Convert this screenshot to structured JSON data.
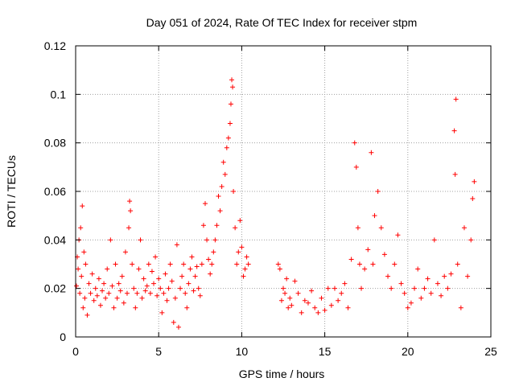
{
  "chart_data": {
    "type": "scatter",
    "title": "Day 051 of 2024, Rate Of TEC Index for receiver stpm",
    "xlabel": "GPS time / hours",
    "ylabel": "ROTI / TECUs",
    "xlim": [
      0,
      25
    ],
    "ylim": [
      0,
      0.12
    ],
    "xticks": [
      0,
      5,
      10,
      15,
      20,
      25
    ],
    "xtick_labels": [
      "0",
      "5",
      "10",
      "15",
      "20",
      "25"
    ],
    "yticks": [
      0,
      0.02,
      0.04,
      0.06,
      0.08,
      0.1,
      0.12
    ],
    "ytick_labels": [
      "0",
      "0.02",
      "0.04",
      "0.06",
      "0.08",
      "0.1",
      "0.12"
    ],
    "grid": true,
    "marker": "+",
    "color": "#ff0000",
    "series": [
      {
        "name": "ROTI",
        "points": [
          [
            0.05,
            0.021
          ],
          [
            0.1,
            0.033
          ],
          [
            0.15,
            0.028
          ],
          [
            0.2,
            0.04
          ],
          [
            0.25,
            0.018
          ],
          [
            0.3,
            0.045
          ],
          [
            0.35,
            0.025
          ],
          [
            0.4,
            0.054
          ],
          [
            0.45,
            0.012
          ],
          [
            0.5,
            0.035
          ],
          [
            0.55,
            0.016
          ],
          [
            0.6,
            0.03
          ],
          [
            0.7,
            0.009
          ],
          [
            0.8,
            0.022
          ],
          [
            0.9,
            0.018
          ],
          [
            1.0,
            0.026
          ],
          [
            1.1,
            0.015
          ],
          [
            1.2,
            0.02
          ],
          [
            1.3,
            0.017
          ],
          [
            1.4,
            0.024
          ],
          [
            1.5,
            0.013
          ],
          [
            1.6,
            0.019
          ],
          [
            1.7,
            0.022
          ],
          [
            1.8,
            0.016
          ],
          [
            1.9,
            0.028
          ],
          [
            2.0,
            0.018
          ],
          [
            2.1,
            0.04
          ],
          [
            2.2,
            0.021
          ],
          [
            2.3,
            0.012
          ],
          [
            2.4,
            0.03
          ],
          [
            2.5,
            0.016
          ],
          [
            2.6,
            0.022
          ],
          [
            2.7,
            0.019
          ],
          [
            2.8,
            0.025
          ],
          [
            2.9,
            0.014
          ],
          [
            3.0,
            0.035
          ],
          [
            3.1,
            0.018
          ],
          [
            3.2,
            0.045
          ],
          [
            3.25,
            0.056
          ],
          [
            3.3,
            0.052
          ],
          [
            3.4,
            0.03
          ],
          [
            3.5,
            0.02
          ],
          [
            3.6,
            0.012
          ],
          [
            3.7,
            0.018
          ],
          [
            3.8,
            0.028
          ],
          [
            3.9,
            0.04
          ],
          [
            4.0,
            0.016
          ],
          [
            4.1,
            0.024
          ],
          [
            4.2,
            0.019
          ],
          [
            4.3,
            0.021
          ],
          [
            4.4,
            0.03
          ],
          [
            4.5,
            0.018
          ],
          [
            4.6,
            0.027
          ],
          [
            4.7,
            0.022
          ],
          [
            4.8,
            0.033
          ],
          [
            4.9,
            0.017
          ],
          [
            5.0,
            0.024
          ],
          [
            5.1,
            0.02
          ],
          [
            5.2,
            0.01
          ],
          [
            5.3,
            0.018
          ],
          [
            5.4,
            0.026
          ],
          [
            5.5,
            0.015
          ],
          [
            5.6,
            0.02
          ],
          [
            5.7,
            0.03
          ],
          [
            5.8,
            0.023
          ],
          [
            5.9,
            0.006
          ],
          [
            6.0,
            0.016
          ],
          [
            6.1,
            0.038
          ],
          [
            6.2,
            0.004
          ],
          [
            6.3,
            0.02
          ],
          [
            6.4,
            0.025
          ],
          [
            6.5,
            0.03
          ],
          [
            6.6,
            0.018
          ],
          [
            6.7,
            0.012
          ],
          [
            6.8,
            0.022
          ],
          [
            6.9,
            0.028
          ],
          [
            7.0,
            0.033
          ],
          [
            7.1,
            0.019
          ],
          [
            7.2,
            0.025
          ],
          [
            7.3,
            0.029
          ],
          [
            7.4,
            0.02
          ],
          [
            7.5,
            0.017
          ],
          [
            7.6,
            0.03
          ],
          [
            7.7,
            0.046
          ],
          [
            7.8,
            0.055
          ],
          [
            7.9,
            0.04
          ],
          [
            8.0,
            0.032
          ],
          [
            8.1,
            0.026
          ],
          [
            8.2,
            0.03
          ],
          [
            8.3,
            0.035
          ],
          [
            8.4,
            0.04
          ],
          [
            8.5,
            0.046
          ],
          [
            8.6,
            0.058
          ],
          [
            8.7,
            0.052
          ],
          [
            8.8,
            0.062
          ],
          [
            8.9,
            0.072
          ],
          [
            9.0,
            0.067
          ],
          [
            9.1,
            0.078
          ],
          [
            9.2,
            0.082
          ],
          [
            9.3,
            0.088
          ],
          [
            9.35,
            0.096
          ],
          [
            9.4,
            0.106
          ],
          [
            9.45,
            0.103
          ],
          [
            9.5,
            0.06
          ],
          [
            9.6,
            0.045
          ],
          [
            9.7,
            0.03
          ],
          [
            9.8,
            0.035
          ],
          [
            9.9,
            0.048
          ],
          [
            10.0,
            0.037
          ],
          [
            10.1,
            0.025
          ],
          [
            10.2,
            0.028
          ],
          [
            10.3,
            0.033
          ],
          [
            10.4,
            0.03
          ],
          [
            12.2,
            0.03
          ],
          [
            12.3,
            0.028
          ],
          [
            12.4,
            0.015
          ],
          [
            12.5,
            0.02
          ],
          [
            12.6,
            0.018
          ],
          [
            12.7,
            0.024
          ],
          [
            12.8,
            0.012
          ],
          [
            12.9,
            0.016
          ],
          [
            13.0,
            0.013
          ],
          [
            13.2,
            0.023
          ],
          [
            13.4,
            0.018
          ],
          [
            13.6,
            0.01
          ],
          [
            13.8,
            0.015
          ],
          [
            14.0,
            0.014
          ],
          [
            14.2,
            0.019
          ],
          [
            14.4,
            0.012
          ],
          [
            14.6,
            0.01
          ],
          [
            14.8,
            0.016
          ],
          [
            15.0,
            0.011
          ],
          [
            15.2,
            0.02
          ],
          [
            15.4,
            0.013
          ],
          [
            15.6,
            0.02
          ],
          [
            15.8,
            0.015
          ],
          [
            16.0,
            0.018
          ],
          [
            16.2,
            0.022
          ],
          [
            16.4,
            0.012
          ],
          [
            16.6,
            0.032
          ],
          [
            16.8,
            0.08
          ],
          [
            16.9,
            0.07
          ],
          [
            17.0,
            0.045
          ],
          [
            17.1,
            0.03
          ],
          [
            17.2,
            0.02
          ],
          [
            17.4,
            0.028
          ],
          [
            17.6,
            0.036
          ],
          [
            17.8,
            0.076
          ],
          [
            17.9,
            0.03
          ],
          [
            18.0,
            0.05
          ],
          [
            18.2,
            0.06
          ],
          [
            18.4,
            0.045
          ],
          [
            18.6,
            0.034
          ],
          [
            18.8,
            0.025
          ],
          [
            19.0,
            0.02
          ],
          [
            19.2,
            0.03
          ],
          [
            19.4,
            0.042
          ],
          [
            19.6,
            0.022
          ],
          [
            19.8,
            0.018
          ],
          [
            20.0,
            0.012
          ],
          [
            20.2,
            0.014
          ],
          [
            20.4,
            0.02
          ],
          [
            20.6,
            0.028
          ],
          [
            20.8,
            0.016
          ],
          [
            21.0,
            0.02
          ],
          [
            21.2,
            0.024
          ],
          [
            21.4,
            0.018
          ],
          [
            21.6,
            0.04
          ],
          [
            21.8,
            0.022
          ],
          [
            22.0,
            0.017
          ],
          [
            22.2,
            0.025
          ],
          [
            22.4,
            0.02
          ],
          [
            22.6,
            0.026
          ],
          [
            22.8,
            0.085
          ],
          [
            22.85,
            0.067
          ],
          [
            22.9,
            0.098
          ],
          [
            23.0,
            0.03
          ],
          [
            23.2,
            0.012
          ],
          [
            23.4,
            0.045
          ],
          [
            23.6,
            0.025
          ],
          [
            23.8,
            0.04
          ],
          [
            23.9,
            0.057
          ],
          [
            24.0,
            0.064
          ]
        ]
      }
    ]
  }
}
